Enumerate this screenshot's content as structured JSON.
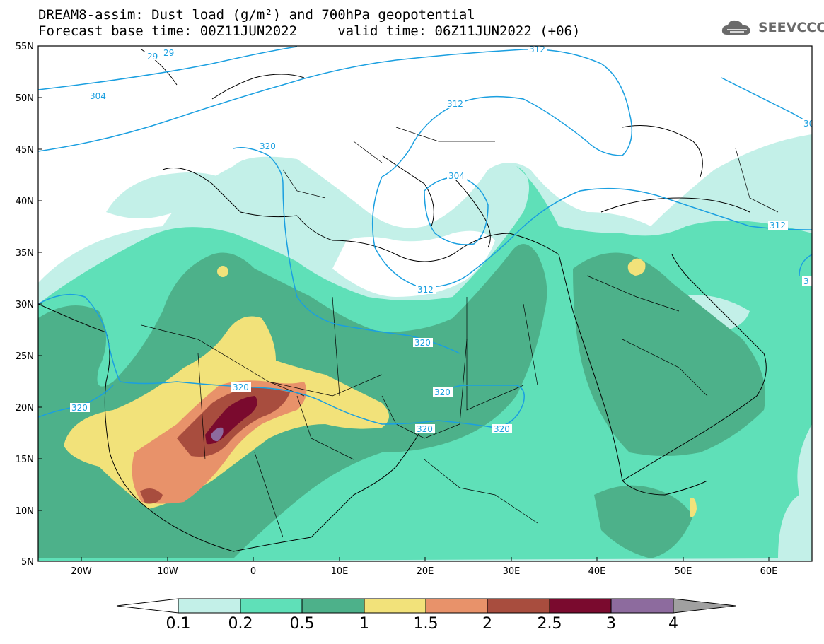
{
  "title": {
    "line1": "DREAM8-assim: Dust load (g/m²) and 700hPa geopotential",
    "line2": "Forecast base time: 00Z11JUN2022     valid time: 06Z11JUN2022 (+06)"
  },
  "logo": {
    "text": "SEEVCCC",
    "icon": "cloud-icon"
  },
  "axes": {
    "lat_labels": [
      "55N",
      "50N",
      "45N",
      "40N",
      "35N",
      "30N",
      "25N",
      "20N",
      "15N",
      "10N",
      "5N"
    ],
    "lon_labels": [
      "20W",
      "10W",
      "0",
      "10E",
      "20E",
      "30E",
      "40E",
      "50E",
      "60E"
    ]
  },
  "contour_labels": [
    "29",
    "29",
    "304",
    "312",
    "312",
    "320",
    "304",
    "312",
    "312",
    "30",
    "3",
    "320",
    "320",
    "320",
    "320",
    "320",
    "320"
  ],
  "colorbar": {
    "ticks": [
      "0.1",
      "0.2",
      "0.5",
      "1",
      "1.5",
      "2",
      "2.5",
      "3",
      "4"
    ],
    "colors": [
      "#c3f0e8",
      "#5fe0b8",
      "#4db18a",
      "#f2e27a",
      "#e8926a",
      "#a84d3e",
      "#7a0a2e",
      "#8d6b9e",
      "#a0a0a0"
    ]
  },
  "colors": {
    "geopotential": "#1a9fe0",
    "coast": "#000000"
  }
}
